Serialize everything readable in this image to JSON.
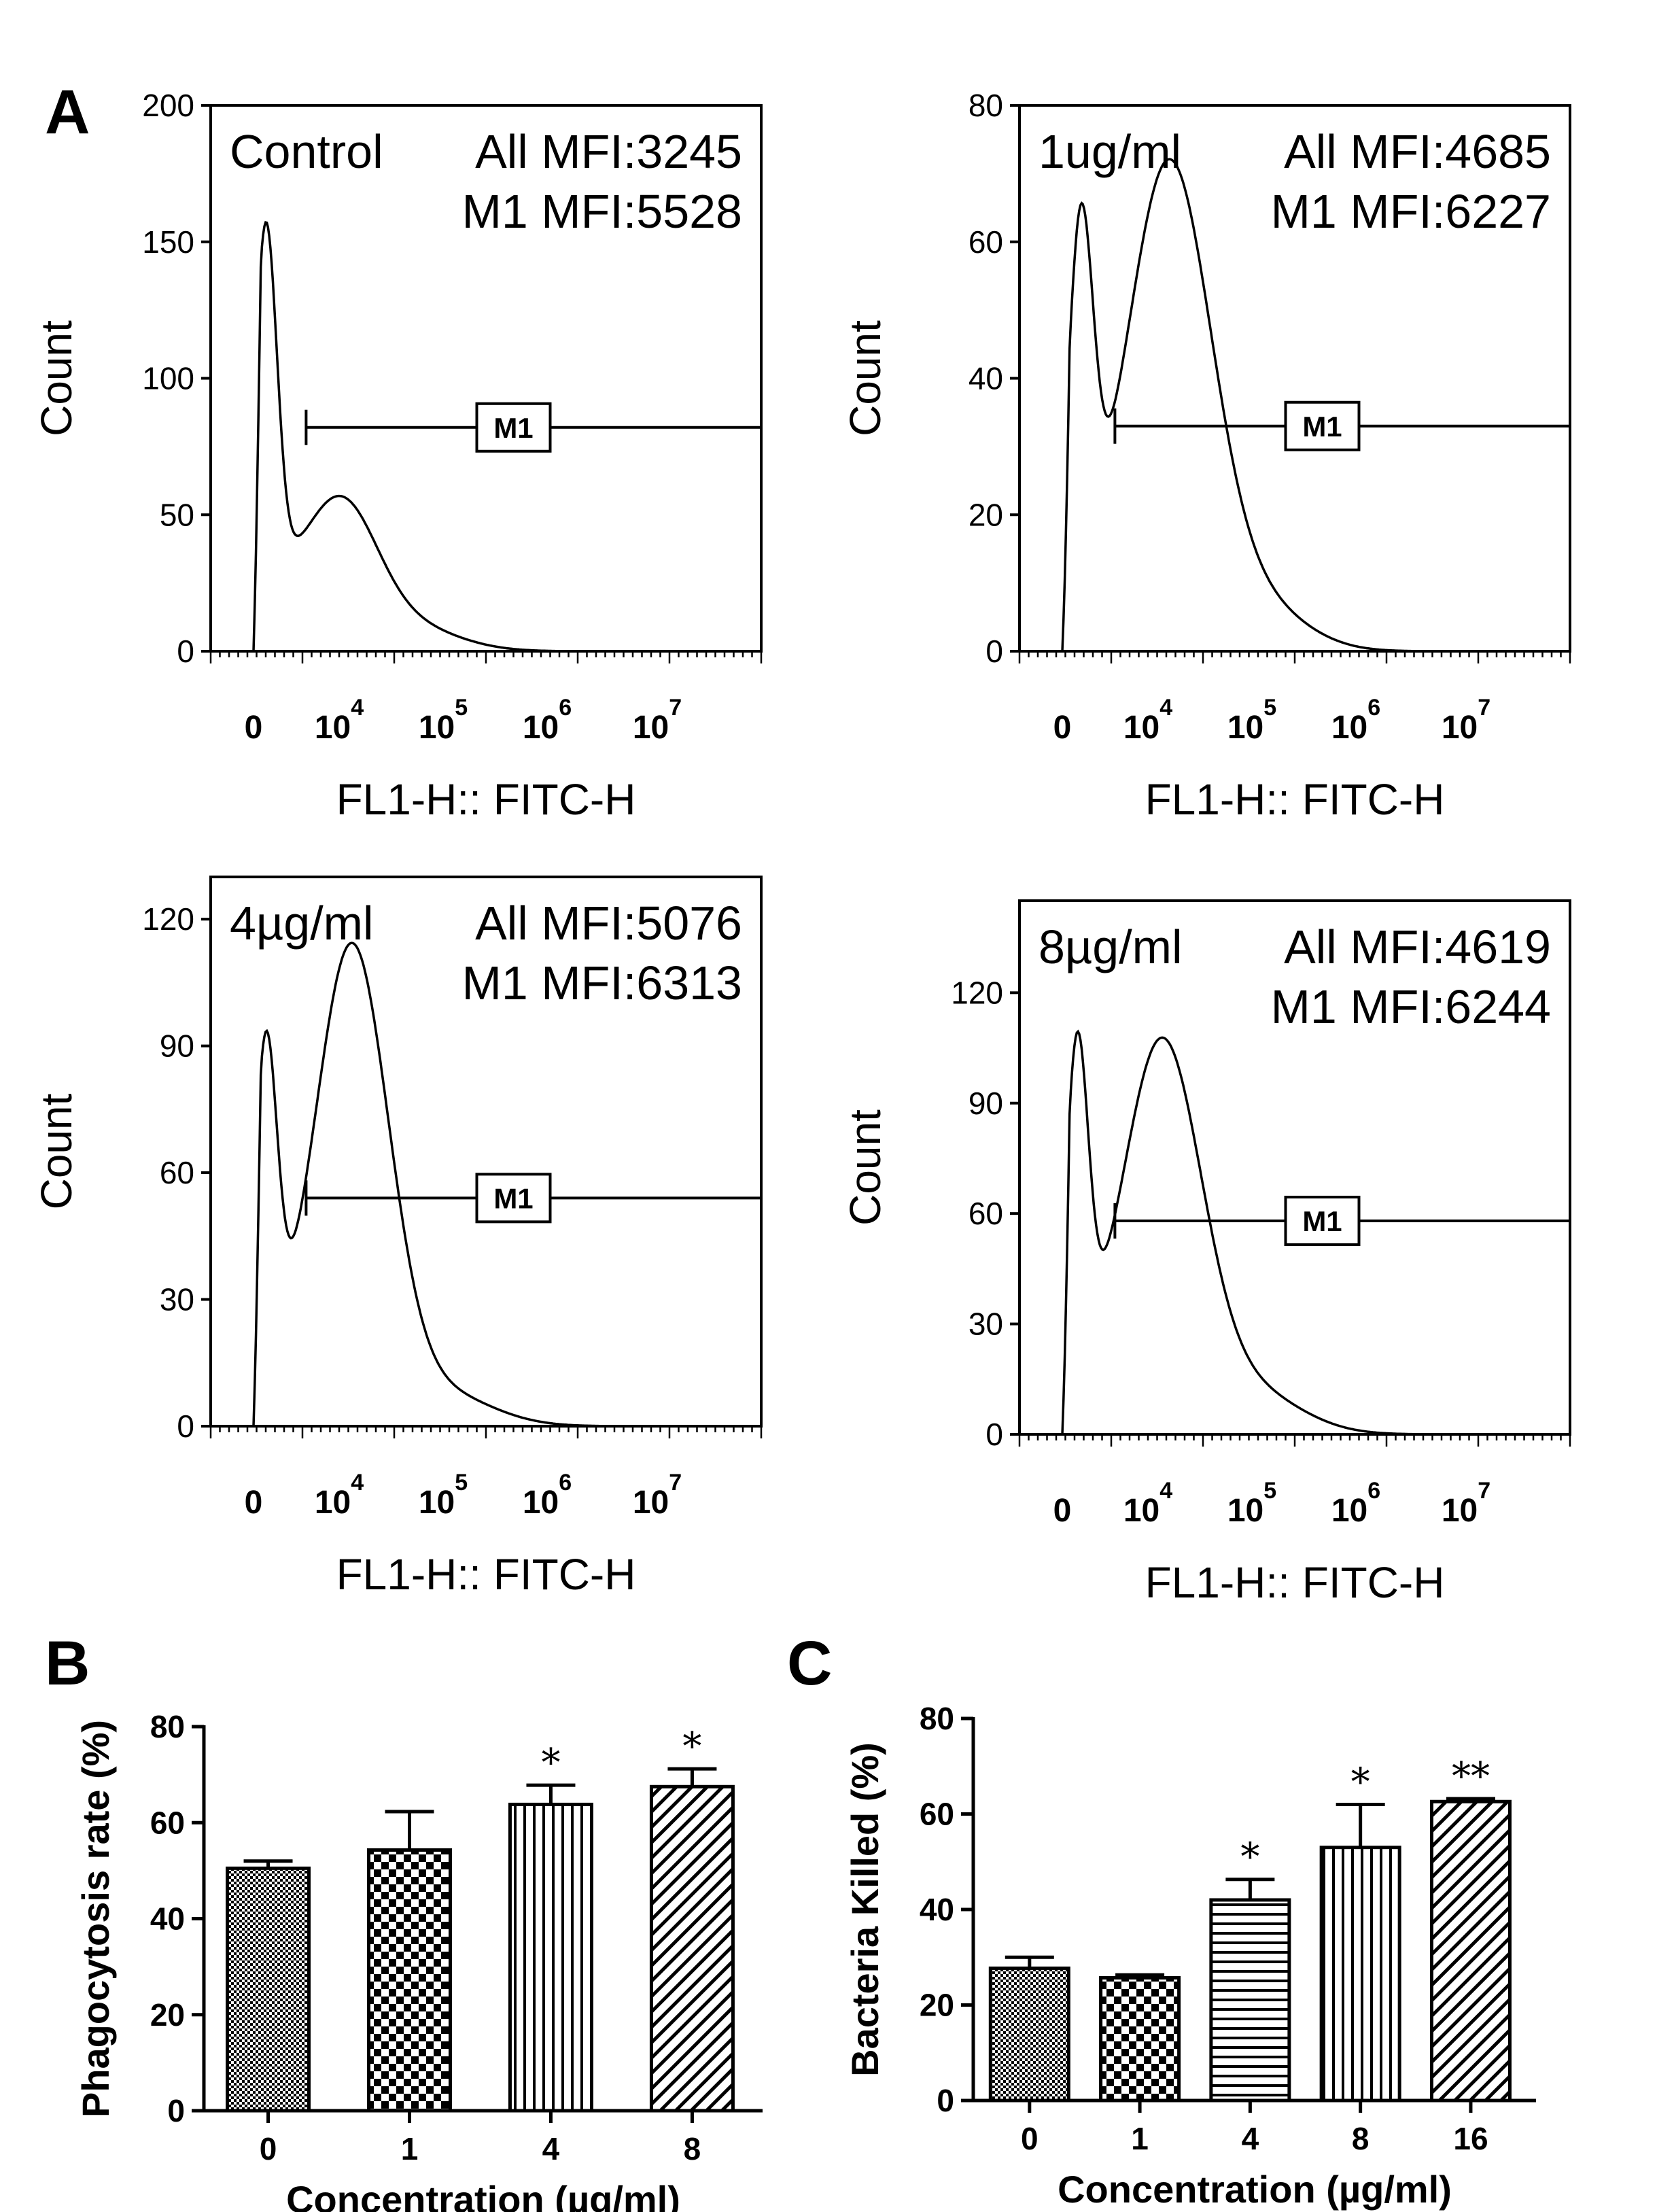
{
  "figure": {
    "panel_labels": [
      "A",
      "B",
      "C"
    ]
  },
  "colors": {
    "ink": "#000000",
    "background": "#ffffff"
  },
  "chart_data": [
    {
      "id": "histA1",
      "panel": "A",
      "type": "area",
      "title": "Control",
      "annotations": [
        "All  MFI:3245",
        "M1 MFI:5528"
      ],
      "xlabel": "FL1-H:: FITC-H",
      "ylabel": "Count",
      "ylim": [
        0,
        200
      ],
      "yticks": [
        0,
        50,
        100,
        150,
        200
      ],
      "xticks": [
        {
          "base": "0",
          "exp": ""
        },
        {
          "base": "10",
          "exp": "4"
        },
        {
          "base": "10",
          "exp": "5"
        },
        {
          "base": "10",
          "exp": "6"
        },
        {
          "base": "10",
          "exp": "7"
        }
      ],
      "gate": {
        "label": "M1",
        "level": 82
      },
      "peaks": [
        {
          "pos": 0.45,
          "height": 130,
          "width": 0.09
        },
        {
          "pos": 0.45,
          "height": 20,
          "width": 0.26
        },
        {
          "pos": 1.05,
          "height": 52,
          "width": 0.3
        },
        {
          "pos": 1.6,
          "height": 9,
          "width": 0.4
        }
      ]
    },
    {
      "id": "histA2",
      "panel": "A",
      "type": "area",
      "title": "1ug/ml",
      "annotations": [
        "All  MFI:4685",
        "M1 MFI:6227"
      ],
      "xlabel": "FL1-H:: FITC-H",
      "ylabel": "Count",
      "ylim": [
        0,
        80
      ],
      "yticks": [
        0,
        20,
        40,
        60,
        80
      ],
      "xticks": [
        {
          "base": "0",
          "exp": ""
        },
        {
          "base": "10",
          "exp": "4"
        },
        {
          "base": "10",
          "exp": "5"
        },
        {
          "base": "10",
          "exp": "6"
        },
        {
          "base": "10",
          "exp": "7"
        }
      ],
      "gate": {
        "label": "M1",
        "level": 33
      },
      "peaks": [
        {
          "pos": 0.5,
          "height": 50,
          "width": 0.1
        },
        {
          "pos": 0.5,
          "height": 8,
          "width": 0.3
        },
        {
          "pos": 1.22,
          "height": 70,
          "width": 0.34
        },
        {
          "pos": 1.9,
          "height": 7,
          "width": 0.4
        }
      ]
    },
    {
      "id": "histA3",
      "panel": "A",
      "type": "area",
      "title": "4µg/ml",
      "annotations": [
        "All  MFI:5076",
        "M1 MFI:6313"
      ],
      "xlabel": "FL1-H:: FITC-H",
      "ylabel": "Count",
      "ylim": [
        0,
        130
      ],
      "yticks": [
        0,
        30,
        60,
        90,
        120
      ],
      "xticks": [
        {
          "base": "0",
          "exp": ""
        },
        {
          "base": "10",
          "exp": "4"
        },
        {
          "base": "10",
          "exp": "5"
        },
        {
          "base": "10",
          "exp": "6"
        },
        {
          "base": "10",
          "exp": "7"
        }
      ],
      "gate": {
        "label": "M1",
        "level": 54
      },
      "peaks": [
        {
          "pos": 0.45,
          "height": 72,
          "width": 0.09
        },
        {
          "pos": 0.45,
          "height": 14,
          "width": 0.26
        },
        {
          "pos": 1.15,
          "height": 112,
          "width": 0.3
        },
        {
          "pos": 1.85,
          "height": 8,
          "width": 0.42
        }
      ]
    },
    {
      "id": "histA4",
      "panel": "A",
      "type": "area",
      "title": "8µg/ml",
      "annotations": [
        "All  MFI:4619",
        "M1 MFI:6244"
      ],
      "xlabel": "FL1-H:: FITC-H",
      "ylabel": "Count",
      "ylim": [
        0,
        145
      ],
      "yticks": [
        0,
        30,
        60,
        90,
        120
      ],
      "xticks": [
        {
          "base": "0",
          "exp": ""
        },
        {
          "base": "10",
          "exp": "4"
        },
        {
          "base": "10",
          "exp": "5"
        },
        {
          "base": "10",
          "exp": "6"
        },
        {
          "base": "10",
          "exp": "7"
        }
      ],
      "gate": {
        "label": "M1",
        "level": 58
      },
      "peaks": [
        {
          "pos": 0.47,
          "height": 85,
          "width": 0.09
        },
        {
          "pos": 0.47,
          "height": 14,
          "width": 0.28
        },
        {
          "pos": 1.16,
          "height": 104,
          "width": 0.32
        },
        {
          "pos": 1.85,
          "height": 12,
          "width": 0.42
        }
      ]
    },
    {
      "id": "barB",
      "panel": "B",
      "type": "bar",
      "categories": [
        "0",
        "1",
        "4",
        "8"
      ],
      "values": [
        50.5,
        54.3,
        63.8,
        67.5
      ],
      "errors": [
        1.5,
        8.0,
        4.0,
        3.7
      ],
      "significance": [
        "",
        "",
        "*",
        "*"
      ],
      "patterns": [
        "dots",
        "checker",
        "vlines",
        "diag"
      ],
      "xlabel": "Concentration (µg/ml)",
      "ylabel": "Phagocytosis rate (%)",
      "ylim": [
        0,
        80
      ],
      "yticks": [
        0,
        20,
        40,
        60,
        80
      ]
    },
    {
      "id": "barC",
      "panel": "C",
      "type": "bar",
      "categories": [
        "0",
        "1",
        "4",
        "8",
        "16"
      ],
      "values": [
        27.7,
        25.7,
        42.0,
        53.0,
        62.6
      ],
      "errors": [
        2.3,
        0.6,
        4.3,
        9.0,
        0.6
      ],
      "significance": [
        "",
        "",
        "*",
        "*",
        "**"
      ],
      "patterns": [
        "dots",
        "checker",
        "hlines",
        "vlines",
        "diag"
      ],
      "xlabel": "Concentration (µg/ml)",
      "ylabel": "Bacteria Killed (%)",
      "ylim": [
        0,
        80
      ],
      "yticks": [
        0,
        20,
        40,
        60,
        80
      ]
    }
  ]
}
